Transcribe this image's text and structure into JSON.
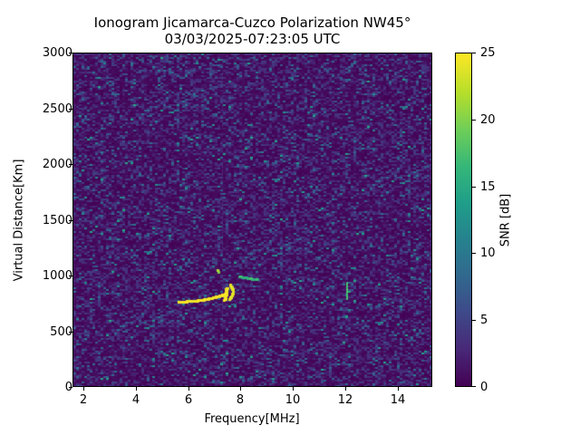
{
  "chart_data": {
    "type": "heatmap",
    "title": "Ionogram Jicamarca-Cuzco Polarization NW45°",
    "subtitle": "03/03/2025-07:23:05 UTC",
    "xlabel": "Frequency[MHz]",
    "ylabel": "Virtual Distance[Km]",
    "xlim": [
      1.6,
      15.3
    ],
    "ylim": [
      0,
      3000
    ],
    "xticks": [
      2,
      4,
      6,
      8,
      10,
      12,
      14
    ],
    "yticks": [
      0,
      500,
      1000,
      1500,
      2000,
      2500,
      3000
    ],
    "colorbar": {
      "label": "SNR [dB]",
      "range": [
        0,
        25
      ],
      "ticks": [
        0,
        5,
        10,
        15,
        20,
        25
      ],
      "colormap": "viridis"
    },
    "grid": false,
    "features": [
      {
        "name": "main echo trace",
        "freq_range_mhz": [
          5.6,
          7.8
        ],
        "distance_km": [
          770,
          1000
        ],
        "snr_db": 25
      },
      {
        "name": "weak trace",
        "freq_range_mhz": [
          7.9,
          8.6
        ],
        "distance_km": [
          960,
          1010
        ],
        "snr_db": 15
      },
      {
        "name": "vertical echo",
        "freq_mhz": 12.0,
        "distance_km": [
          800,
          950
        ],
        "snr_db": 18
      }
    ],
    "background_snr_db": [
      0,
      8
    ]
  },
  "labels": {
    "title_line1": "Ionogram Jicamarca-Cuzco Polarization NW45°",
    "title_line2": "03/03/2025-07:23:05 UTC",
    "xlabel": "Frequency[MHz]",
    "ylabel": "Virtual Distance[Km]",
    "clabel": "SNR [dB]",
    "xticks": [
      "2",
      "4",
      "6",
      "8",
      "10",
      "12",
      "14"
    ],
    "yticks": [
      "0",
      "500",
      "1000",
      "1500",
      "2000",
      "2500",
      "3000"
    ],
    "cticks": [
      "0",
      "5",
      "10",
      "15",
      "20",
      "25"
    ]
  }
}
